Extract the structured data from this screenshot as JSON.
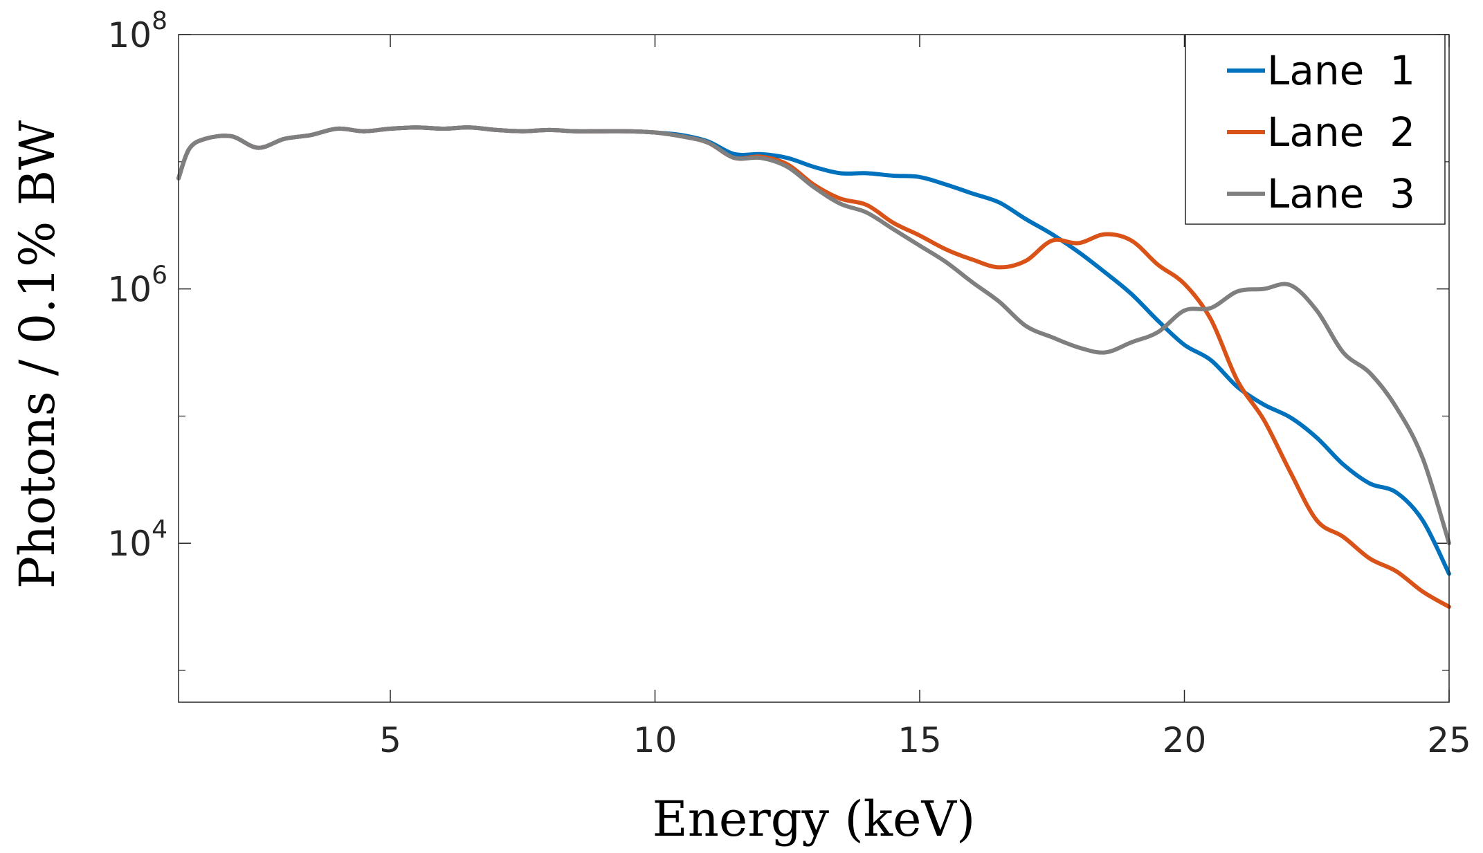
{
  "chart_data": {
    "type": "line",
    "xlabel": "Energy (keV)",
    "ylabel": "Photons / 0.1% BW",
    "xlim": [
      1.0,
      25.0
    ],
    "ylim_log10": [
      2.75,
      8.0
    ],
    "yscale": "log",
    "x_ticks": [
      5,
      10,
      15,
      20,
      25
    ],
    "x_tick_labels": [
      "5",
      "10",
      "15",
      "20",
      "25"
    ],
    "y_ticks": [
      {
        "exp": 4,
        "base": "10",
        "sup": "4"
      },
      {
        "exp": 6,
        "base": "10",
        "sup": "6"
      },
      {
        "exp": 8,
        "base": "10",
        "sup": "8"
      }
    ],
    "legend_position": "top-right",
    "series": [
      {
        "name": "Lane  1",
        "color": "#0072BD",
        "log10_points": [
          [
            1.0,
            6.87
          ],
          [
            1.2,
            7.1
          ],
          [
            1.5,
            7.18
          ],
          [
            2.0,
            7.2
          ],
          [
            2.5,
            7.11
          ],
          [
            3.0,
            7.18
          ],
          [
            3.5,
            7.21
          ],
          [
            4.0,
            7.26
          ],
          [
            4.5,
            7.24
          ],
          [
            5.0,
            7.26
          ],
          [
            5.5,
            7.27
          ],
          [
            6.0,
            7.26
          ],
          [
            6.5,
            7.27
          ],
          [
            7.0,
            7.25
          ],
          [
            7.5,
            7.24
          ],
          [
            8.0,
            7.25
          ],
          [
            8.5,
            7.24
          ],
          [
            9.0,
            7.24
          ],
          [
            9.5,
            7.24
          ],
          [
            10.0,
            7.23
          ],
          [
            10.5,
            7.21
          ],
          [
            11.0,
            7.16
          ],
          [
            11.5,
            7.06
          ],
          [
            12.0,
            7.06
          ],
          [
            12.5,
            7.03
          ],
          [
            13.0,
            6.96
          ],
          [
            13.5,
            6.91
          ],
          [
            14.0,
            6.91
          ],
          [
            14.5,
            6.89
          ],
          [
            15.0,
            6.88
          ],
          [
            15.5,
            6.82
          ],
          [
            16.0,
            6.75
          ],
          [
            16.5,
            6.68
          ],
          [
            17.0,
            6.55
          ],
          [
            17.5,
            6.43
          ],
          [
            18.0,
            6.29
          ],
          [
            18.5,
            6.13
          ],
          [
            19.0,
            5.96
          ],
          [
            19.5,
            5.75
          ],
          [
            20.0,
            5.56
          ],
          [
            20.5,
            5.44
          ],
          [
            21.0,
            5.23
          ],
          [
            21.5,
            5.09
          ],
          [
            22.0,
            4.99
          ],
          [
            22.5,
            4.83
          ],
          [
            23.0,
            4.62
          ],
          [
            23.5,
            4.47
          ],
          [
            24.0,
            4.4
          ],
          [
            24.5,
            4.18
          ],
          [
            25.0,
            3.76
          ]
        ]
      },
      {
        "name": "Lane  2",
        "color": "#D95319",
        "log10_points": [
          [
            1.0,
            6.87
          ],
          [
            1.2,
            7.1
          ],
          [
            1.5,
            7.18
          ],
          [
            2.0,
            7.2
          ],
          [
            2.5,
            7.11
          ],
          [
            3.0,
            7.18
          ],
          [
            3.5,
            7.21
          ],
          [
            4.0,
            7.26
          ],
          [
            4.5,
            7.24
          ],
          [
            5.0,
            7.26
          ],
          [
            5.5,
            7.27
          ],
          [
            6.0,
            7.26
          ],
          [
            6.5,
            7.27
          ],
          [
            7.0,
            7.25
          ],
          [
            7.5,
            7.24
          ],
          [
            8.0,
            7.25
          ],
          [
            8.5,
            7.24
          ],
          [
            9.0,
            7.24
          ],
          [
            9.5,
            7.24
          ],
          [
            10.0,
            7.23
          ],
          [
            10.5,
            7.2
          ],
          [
            11.0,
            7.15
          ],
          [
            11.5,
            7.03
          ],
          [
            12.0,
            7.04
          ],
          [
            12.5,
            6.98
          ],
          [
            13.0,
            6.82
          ],
          [
            13.5,
            6.71
          ],
          [
            14.0,
            6.66
          ],
          [
            14.5,
            6.52
          ],
          [
            15.0,
            6.42
          ],
          [
            15.5,
            6.31
          ],
          [
            16.0,
            6.23
          ],
          [
            16.5,
            6.17
          ],
          [
            17.0,
            6.22
          ],
          [
            17.5,
            6.38
          ],
          [
            18.0,
            6.36
          ],
          [
            18.5,
            6.43
          ],
          [
            19.0,
            6.38
          ],
          [
            19.5,
            6.19
          ],
          [
            20.0,
            6.04
          ],
          [
            20.5,
            5.76
          ],
          [
            21.0,
            5.28
          ],
          [
            21.5,
            4.97
          ],
          [
            22.0,
            4.56
          ],
          [
            22.5,
            4.18
          ],
          [
            23.0,
            4.05
          ],
          [
            23.5,
            3.88
          ],
          [
            24.0,
            3.78
          ],
          [
            24.5,
            3.62
          ],
          [
            25.0,
            3.5
          ]
        ]
      },
      {
        "name": "Lane  3",
        "color": "#7F7F7F",
        "log10_points": [
          [
            1.0,
            6.87
          ],
          [
            1.2,
            7.1
          ],
          [
            1.5,
            7.18
          ],
          [
            2.0,
            7.2
          ],
          [
            2.5,
            7.11
          ],
          [
            3.0,
            7.18
          ],
          [
            3.5,
            7.21
          ],
          [
            4.0,
            7.26
          ],
          [
            4.5,
            7.24
          ],
          [
            5.0,
            7.26
          ],
          [
            5.5,
            7.27
          ],
          [
            6.0,
            7.26
          ],
          [
            6.5,
            7.27
          ],
          [
            7.0,
            7.25
          ],
          [
            7.5,
            7.24
          ],
          [
            8.0,
            7.25
          ],
          [
            8.5,
            7.24
          ],
          [
            9.0,
            7.24
          ],
          [
            9.5,
            7.24
          ],
          [
            10.0,
            7.23
          ],
          [
            10.5,
            7.2
          ],
          [
            11.0,
            7.15
          ],
          [
            11.5,
            7.03
          ],
          [
            12.0,
            7.03
          ],
          [
            12.5,
            6.96
          ],
          [
            13.0,
            6.8
          ],
          [
            13.5,
            6.67
          ],
          [
            14.0,
            6.6
          ],
          [
            14.5,
            6.47
          ],
          [
            15.0,
            6.34
          ],
          [
            15.5,
            6.21
          ],
          [
            16.0,
            6.05
          ],
          [
            16.5,
            5.9
          ],
          [
            17.0,
            5.71
          ],
          [
            17.5,
            5.62
          ],
          [
            18.0,
            5.54
          ],
          [
            18.5,
            5.5
          ],
          [
            19.0,
            5.58
          ],
          [
            19.5,
            5.66
          ],
          [
            20.0,
            5.83
          ],
          [
            20.5,
            5.85
          ],
          [
            21.0,
            5.98
          ],
          [
            21.5,
            6.0
          ],
          [
            22.0,
            6.03
          ],
          [
            22.5,
            5.83
          ],
          [
            23.0,
            5.5
          ],
          [
            23.5,
            5.34
          ],
          [
            24.0,
            5.07
          ],
          [
            24.5,
            4.67
          ],
          [
            25.0,
            4.0
          ]
        ]
      }
    ]
  }
}
